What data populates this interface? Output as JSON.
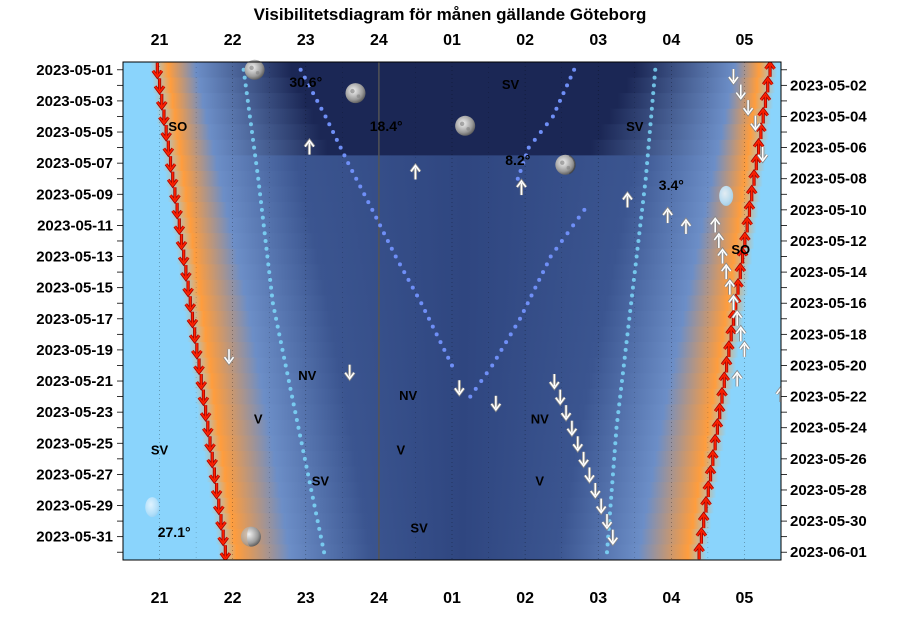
{
  "chart_data": {
    "type": "visibility-diagram",
    "title": "Visibilitetsdiagram för månen gällande Göteborg",
    "hour_labels": [
      "21",
      "22",
      "23",
      "24",
      "01",
      "02",
      "03",
      "04",
      "05"
    ],
    "left_dates": [
      "2023-05-01",
      "2023-05-03",
      "2023-05-05",
      "2023-05-07",
      "2023-05-09",
      "2023-05-11",
      "2023-05-13",
      "2023-05-15",
      "2023-05-17",
      "2023-05-19",
      "2023-05-21",
      "2023-05-23",
      "2023-05-25",
      "2023-05-27",
      "2023-05-29",
      "2023-05-31"
    ],
    "right_dates": [
      "2023-05-02",
      "2023-05-04",
      "2023-05-06",
      "2023-05-08",
      "2023-05-10",
      "2023-05-12",
      "2023-05-14",
      "2023-05-16",
      "2023-05-18",
      "2023-05-20",
      "2023-05-22",
      "2023-05-24",
      "2023-05-26",
      "2023-05-28",
      "2023-05-30",
      "2023-06-01"
    ],
    "time_range": [
      20.5,
      29.5
    ],
    "day_count": 32,
    "sunset": [
      [
        1,
        20.97
      ],
      [
        8,
        21.18
      ],
      [
        16,
        21.42
      ],
      [
        24,
        21.65
      ],
      [
        32,
        21.9
      ]
    ],
    "sunrise": [
      [
        1,
        29.35
      ],
      [
        8,
        29.15
      ],
      [
        16,
        28.92
      ],
      [
        24,
        28.65
      ],
      [
        32,
        28.38
      ]
    ],
    "nautical_dusk": [
      [
        1,
        21.6
      ],
      [
        8,
        21.93
      ],
      [
        16,
        22.3
      ],
      [
        24,
        22.6
      ],
      [
        32,
        22.88
      ]
    ],
    "nautical_dawn": [
      [
        1,
        28.77
      ],
      [
        8,
        28.45
      ],
      [
        16,
        28.1
      ],
      [
        24,
        27.75
      ],
      [
        32,
        27.45
      ]
    ],
    "astronomical_dusk": [
      [
        1,
        22.8
      ],
      [
        4,
        23.1
      ],
      [
        6,
        23.3
      ]
    ],
    "astronomical_dawn": [
      [
        1,
        27.5
      ],
      [
        4,
        27.15
      ],
      [
        6,
        26.9
      ]
    ],
    "moon_paths": [
      [
        [
          1,
          22.93
        ],
        [
          4,
          23.27
        ],
        [
          7,
          23.58
        ],
        [
          10,
          23.91
        ],
        [
          13,
          24.23
        ],
        [
          16,
          24.58
        ],
        [
          20,
          25.0
        ]
      ],
      [
        [
          10,
          26.81
        ],
        [
          13,
          26.35
        ],
        [
          17,
          25.93
        ],
        [
          20,
          25.55
        ],
        [
          22,
          25.25
        ]
      ],
      [
        [
          1,
          26.67
        ],
        [
          4,
          26.38
        ],
        [
          6,
          26.05
        ],
        [
          8,
          25.9
        ]
      ],
      [
        [
          1,
          22.15
        ],
        [
          8,
          22.35
        ],
        [
          16,
          22.55
        ],
        [
          24,
          22.9
        ],
        [
          32,
          23.25
        ]
      ],
      [
        [
          1,
          27.78
        ],
        [
          8,
          27.65
        ],
        [
          16,
          27.45
        ],
        [
          24,
          27.25
        ],
        [
          32,
          27.12
        ]
      ]
    ],
    "moon_icons": [
      {
        "day": 1,
        "t": 22.3,
        "phase": "full"
      },
      {
        "day": 2.5,
        "t": 23.68,
        "phase": "full"
      },
      {
        "day": 4.6,
        "t": 25.18,
        "phase": "full"
      },
      {
        "day": 7.1,
        "t": 26.55,
        "phase": "waning"
      },
      {
        "day": 9.1,
        "t": 28.75,
        "phase": "crescent"
      },
      {
        "day": 29.1,
        "t": 20.9,
        "phase": "crescent"
      },
      {
        "day": 31,
        "t": 22.25,
        "phase": "waxing"
      }
    ],
    "altitude_labels": [
      {
        "text": "30.6°",
        "day": 1.8,
        "t": 23.0
      },
      {
        "text": "18.4°",
        "day": 4.6,
        "t": 24.1
      },
      {
        "text": "8.2°",
        "day": 6.8,
        "t": 25.9
      },
      {
        "text": "3.4°",
        "day": 8.4,
        "t": 28.0
      },
      {
        "text": "27.1°",
        "day": 30.7,
        "t": 21.2
      }
    ],
    "direction_labels": [
      {
        "text": "SV",
        "day": 1.9,
        "t": 25.8
      },
      {
        "text": "SO",
        "day": 4.6,
        "t": 21.25
      },
      {
        "text": "SV",
        "day": 4.6,
        "t": 27.5
      },
      {
        "text": "SO",
        "day": 12.5,
        "t": 28.95
      },
      {
        "text": "NV",
        "day": 20.6,
        "t": 23.02
      },
      {
        "text": "NV",
        "day": 21.9,
        "t": 24.4
      },
      {
        "text": "V",
        "day": 23.4,
        "t": 22.35
      },
      {
        "text": "NV",
        "day": 23.4,
        "t": 26.2
      },
      {
        "text": "SV",
        "day": 25.4,
        "t": 21.0
      },
      {
        "text": "V",
        "day": 25.4,
        "t": 24.3
      },
      {
        "text": "SV",
        "day": 27.4,
        "t": 23.2
      },
      {
        "text": "V",
        "day": 27.4,
        "t": 26.2
      },
      {
        "text": "SV",
        "day": 30.4,
        "t": 24.55
      }
    ],
    "arrow_sets": [
      {
        "color": "#ff2200",
        "dir": "down",
        "from": [
          1,
          20.97
        ],
        "to": [
          32,
          21.9
        ],
        "step": 1
      },
      {
        "color": "#ff2200",
        "dir": "up",
        "from": [
          1,
          29.35
        ],
        "to": [
          32,
          28.38
        ],
        "step": 1
      },
      {
        "color": "#ffffff",
        "dir": "up",
        "from": [
          11,
          28.6
        ],
        "to": [
          19,
          29.0
        ],
        "step": 1
      },
      {
        "color": "#ffffff",
        "dir": "down",
        "from": [
          21,
          26.4
        ],
        "to": [
          31,
          27.2
        ],
        "step": 1
      }
    ],
    "single_arrows": [
      {
        "dir": "up",
        "day": 6,
        "t": 23.05
      },
      {
        "dir": "up",
        "day": 7.6,
        "t": 24.5
      },
      {
        "dir": "up",
        "day": 8.6,
        "t": 25.95
      },
      {
        "dir": "up",
        "day": 9.4,
        "t": 27.4
      },
      {
        "dir": "up",
        "day": 10.4,
        "t": 27.95
      },
      {
        "dir": "up",
        "day": 11.1,
        "t": 28.2
      },
      {
        "dir": "up",
        "day": 20.9,
        "t": 28.9
      },
      {
        "dir": "up",
        "day": 21.9,
        "t": 29.5
      },
      {
        "dir": "down",
        "day": 1.4,
        "t": 28.85
      },
      {
        "dir": "down",
        "day": 2.4,
        "t": 28.95
      },
      {
        "dir": "down",
        "day": 3.4,
        "t": 29.05
      },
      {
        "dir": "down",
        "day": 4.4,
        "t": 29.15
      },
      {
        "dir": "down",
        "day": 6.4,
        "t": 29.25
      },
      {
        "dir": "down",
        "day": 19.4,
        "t": 21.95
      },
      {
        "dir": "down",
        "day": 20.4,
        "t": 23.6
      },
      {
        "dir": "down",
        "day": 21.4,
        "t": 25.1
      },
      {
        "dir": "down",
        "day": 22.4,
        "t": 25.6
      }
    ],
    "colors": {
      "day_sky": "#8ad4fc",
      "twilight_orange": "#ff9d3d",
      "civil_blue": "#6c8ec7",
      "night_dark": "#1b2755",
      "moon_path_dot": "#6f8ff7",
      "arrow_red": "#ff2200",
      "arrow_white": "#ffffff"
    }
  }
}
